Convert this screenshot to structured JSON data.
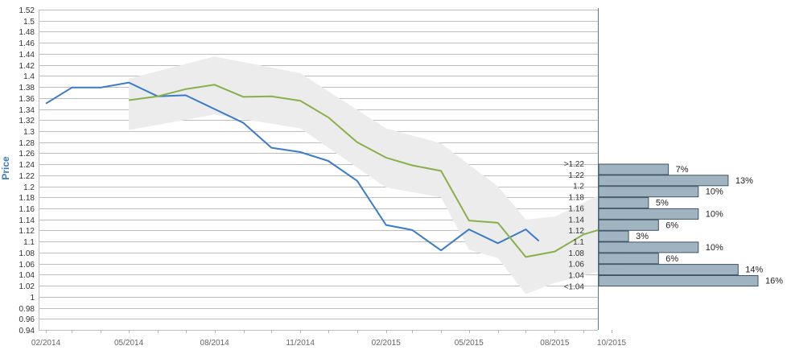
{
  "colors": {
    "price_line": "#3a7cc8",
    "forecast_line": "#88b04b",
    "band_fill": "#ececec",
    "bar_fill": "#9fb3c0",
    "bar_stroke": "#3e5566",
    "grid": "#bdbdbd",
    "axis": "#5a7896",
    "ylabel": "#3a7cc8"
  },
  "chart_data": {
    "type": "line",
    "ylabel": "Price",
    "ylim": [
      0.94,
      1.52
    ],
    "y_ticks": [
      "1.52",
      "1.5",
      "1.48",
      "1.46",
      "1.44",
      "1.42",
      "1.4",
      "1.38",
      "1.36",
      "1.34",
      "1.32",
      "1.3",
      "1.28",
      "1.26",
      "1.24",
      "1.22",
      "1.2",
      "1.18",
      "1.16",
      "1.14",
      "1.12",
      "1.1",
      "1.08",
      "1.06",
      "1.04",
      "1.02",
      "1",
      "0.98",
      "0.96",
      "0.94"
    ],
    "x_ticks": [
      {
        "label": "02/2014",
        "x": "2014-02-01"
      },
      {
        "label": "05/2014",
        "x": "2014-05-01"
      },
      {
        "label": "08/2014",
        "x": "2014-08-01"
      },
      {
        "label": "11/2014",
        "x": "2014-11-01"
      },
      {
        "label": "02/2015",
        "x": "2015-02-01"
      },
      {
        "label": "05/2015",
        "x": "2015-05-01"
      },
      {
        "label": "08/2015",
        "x": "2015-08-01"
      },
      {
        "label": "10/2015",
        "x": "2015-10-01"
      }
    ],
    "xlim": [
      "2014-02-01",
      "2015-10-01"
    ],
    "grid": true,
    "series": [
      {
        "color": "#3a7cc8",
        "points": [
          {
            "x": "2014-02-01",
            "y": 1.35
          },
          {
            "x": "2014-03-01",
            "y": 1.379
          },
          {
            "x": "2014-04-01",
            "y": 1.379
          },
          {
            "x": "2014-05-01",
            "y": 1.388
          },
          {
            "x": "2014-06-01",
            "y": 1.363
          },
          {
            "x": "2014-07-01",
            "y": 1.365
          },
          {
            "x": "2014-08-01",
            "y": 1.34
          },
          {
            "x": "2014-09-01",
            "y": 1.315
          },
          {
            "x": "2014-10-01",
            "y": 1.27
          },
          {
            "x": "2014-11-01",
            "y": 1.262
          },
          {
            "x": "2014-12-01",
            "y": 1.246
          },
          {
            "x": "2015-01-01",
            "y": 1.21
          },
          {
            "x": "2015-02-01",
            "y": 1.13
          },
          {
            "x": "2015-03-01",
            "y": 1.121
          },
          {
            "x": "2015-04-01",
            "y": 1.084
          },
          {
            "x": "2015-05-01",
            "y": 1.122
          },
          {
            "x": "2015-06-01",
            "y": 1.097
          },
          {
            "x": "2015-07-01",
            "y": 1.122
          },
          {
            "x": "2015-07-15",
            "y": 1.101
          }
        ]
      },
      {
        "color": "#88b04b",
        "points": [
          {
            "x": "2014-05-01",
            "y": 1.356
          },
          {
            "x": "2014-06-01",
            "y": 1.363
          },
          {
            "x": "2014-07-01",
            "y": 1.376
          },
          {
            "x": "2014-08-01",
            "y": 1.384
          },
          {
            "x": "2014-09-01",
            "y": 1.362
          },
          {
            "x": "2014-10-01",
            "y": 1.363
          },
          {
            "x": "2014-11-01",
            "y": 1.355
          },
          {
            "x": "2014-12-01",
            "y": 1.325
          },
          {
            "x": "2015-01-01",
            "y": 1.28
          },
          {
            "x": "2015-02-01",
            "y": 1.252
          },
          {
            "x": "2015-03-01",
            "y": 1.238
          },
          {
            "x": "2015-04-01",
            "y": 1.228
          },
          {
            "x": "2015-05-01",
            "y": 1.138
          },
          {
            "x": "2015-06-01",
            "y": 1.134
          },
          {
            "x": "2015-07-01",
            "y": 1.072
          },
          {
            "x": "2015-08-01",
            "y": 1.082
          },
          {
            "x": "2015-09-01",
            "y": 1.113
          },
          {
            "x": "2015-10-01",
            "y": 1.128
          },
          {
            "x": "2015-10-15",
            "y": 1.12
          }
        ]
      }
    ],
    "band": {
      "color": "#ececec",
      "upper": [
        {
          "x": "2014-05-01",
          "y": 1.395
        },
        {
          "x": "2014-08-01",
          "y": 1.435
        },
        {
          "x": "2014-11-01",
          "y": 1.405
        },
        {
          "x": "2015-02-01",
          "y": 1.305
        },
        {
          "x": "2015-04-01",
          "y": 1.278
        },
        {
          "x": "2015-06-01",
          "y": 1.2
        },
        {
          "x": "2015-07-01",
          "y": 1.14
        },
        {
          "x": "2015-08-01",
          "y": 1.145
        },
        {
          "x": "2015-09-15",
          "y": 1.182
        },
        {
          "x": "2015-10-15",
          "y": 1.2
        }
      ],
      "lower": [
        {
          "x": "2015-10-15",
          "y": 1.055
        },
        {
          "x": "2015-09-15",
          "y": 1.045
        },
        {
          "x": "2015-08-01",
          "y": 1.025
        },
        {
          "x": "2015-07-01",
          "y": 1.005
        },
        {
          "x": "2015-06-01",
          "y": 1.07
        },
        {
          "x": "2015-05-01",
          "y": 1.085
        },
        {
          "x": "2015-04-01",
          "y": 1.18
        },
        {
          "x": "2015-02-01",
          "y": 1.198
        },
        {
          "x": "2014-11-01",
          "y": 1.305
        },
        {
          "x": "2014-08-01",
          "y": 1.33
        },
        {
          "x": "2014-05-01",
          "y": 1.302
        }
      ]
    },
    "distribution": {
      "bins": [
        {
          "label": ">1.22",
          "center": 1.23,
          "pct": 7,
          "pct_label": "7%"
        },
        {
          "label": "1.22",
          "center": 1.21,
          "pct": 13,
          "pct_label": "13%"
        },
        {
          "label": "1.2",
          "center": 1.19,
          "pct": 10,
          "pct_label": "10%"
        },
        {
          "label": "1.18",
          "center": 1.17,
          "pct": 5,
          "pct_label": "5%"
        },
        {
          "label": "1.16",
          "center": 1.15,
          "pct": 10,
          "pct_label": "10%"
        },
        {
          "label": "1.14",
          "center": 1.13,
          "pct": 6,
          "pct_label": "6%"
        },
        {
          "label": "1.12",
          "center": 1.11,
          "pct": 3,
          "pct_label": "3%"
        },
        {
          "label": "1.1",
          "center": 1.09,
          "pct": 10,
          "pct_label": "10%"
        },
        {
          "label": "1.08",
          "center": 1.07,
          "pct": 6,
          "pct_label": "6%"
        },
        {
          "label": "1.06",
          "center": 1.05,
          "pct": 14,
          "pct_label": "14%"
        },
        {
          "label": "1.04",
          "center": 1.03,
          "pct": 16,
          "pct_label": "16%"
        },
        {
          "label": "<1.04",
          "center": 1.03,
          "pct": null,
          "pct_label": ""
        }
      ],
      "max_pct": 16
    }
  }
}
